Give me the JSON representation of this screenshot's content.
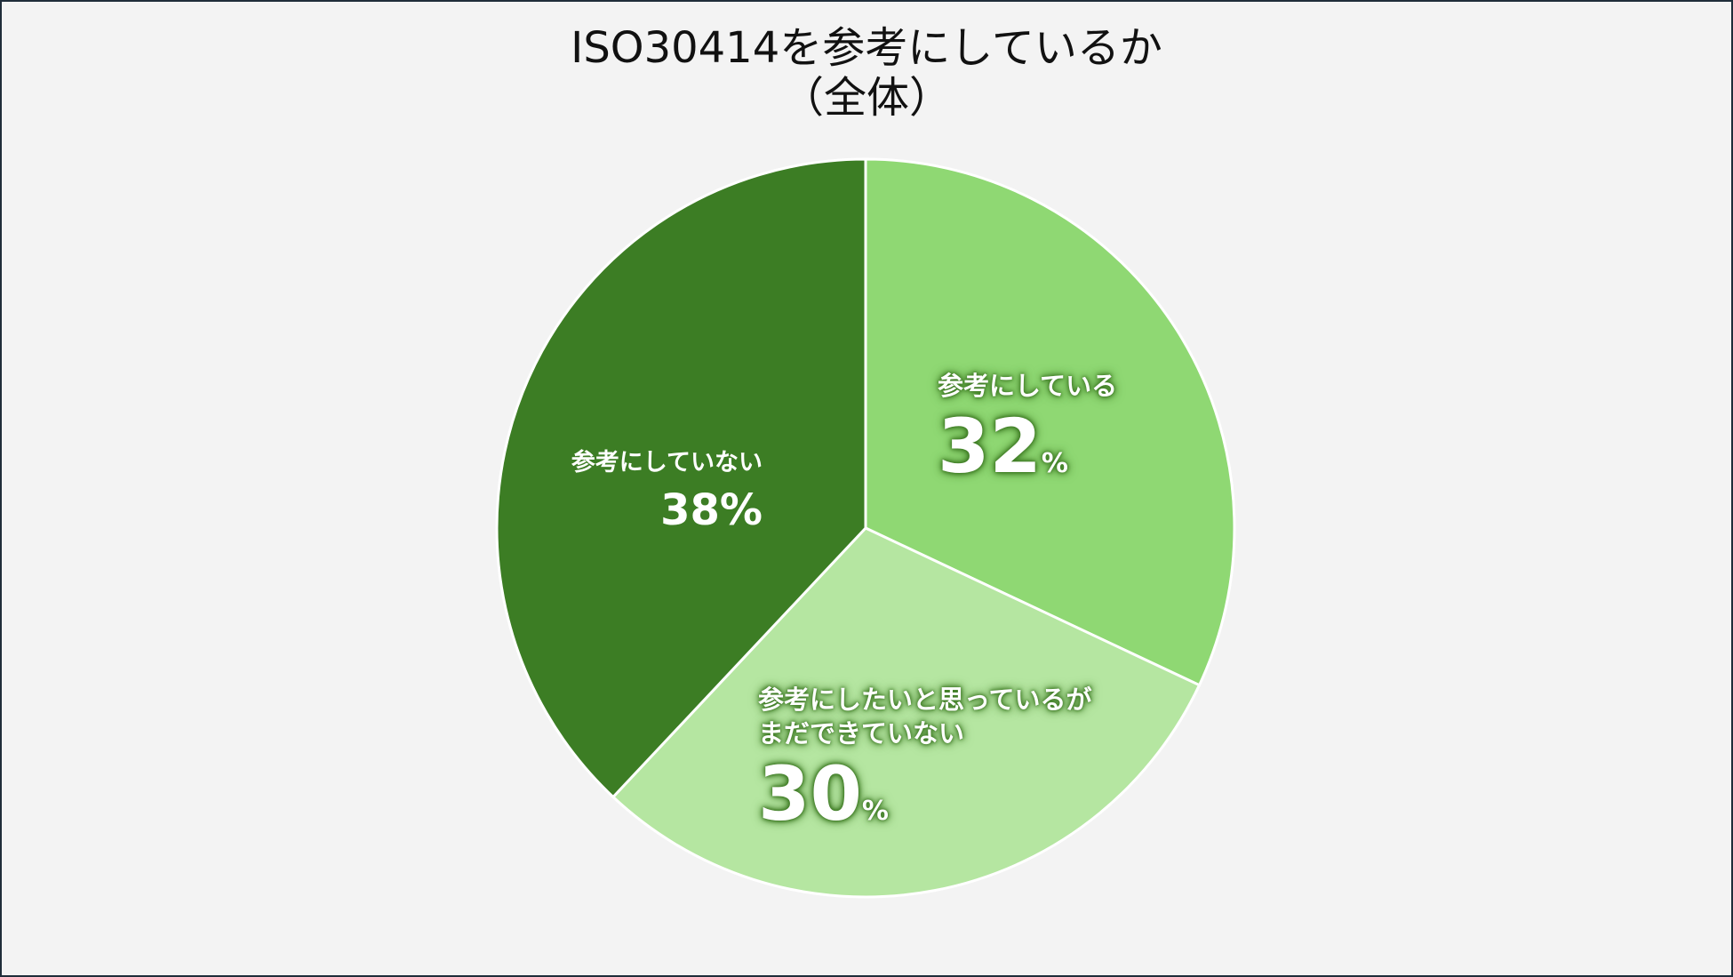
{
  "chart_data": {
    "type": "pie",
    "title_line1": "ISO30414を参考にしているか",
    "title_line2": "（全体）",
    "start_angle_deg": 0,
    "direction": "clockwise",
    "slices": [
      {
        "label": "参考にしている",
        "label_line2": "",
        "value": 32,
        "value_text": "32",
        "unit": "%",
        "color": "#8fd873"
      },
      {
        "label": "参考にしたいと思っているが",
        "label_line2": "まだできていない",
        "value": 30,
        "value_text": "30",
        "unit": "%",
        "color": "#b5e6a1"
      },
      {
        "label": "参考にしていない",
        "label_line2": "",
        "value": 38,
        "value_text": "38",
        "unit": "%",
        "color": "#3c7d24"
      }
    ]
  }
}
